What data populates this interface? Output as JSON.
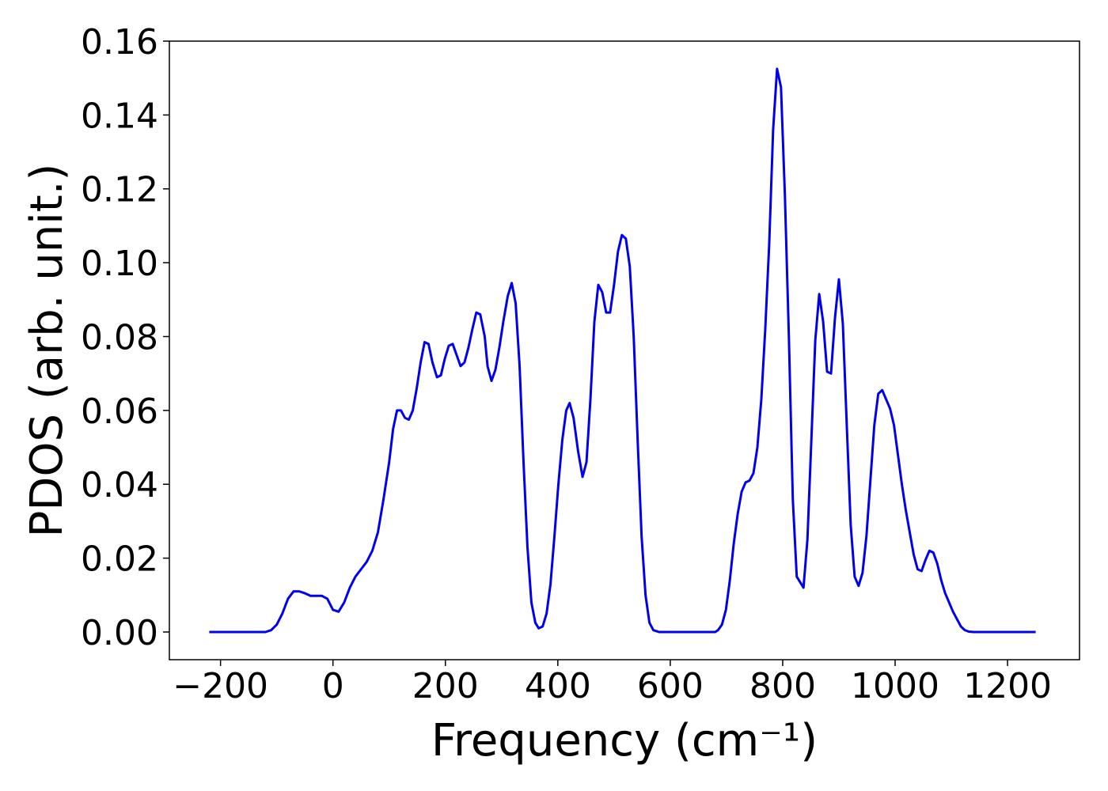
{
  "chart_data": {
    "type": "line",
    "xlabel": "Frequency (cm⁻¹)",
    "ylabel": "PDOS (arb. unit.)",
    "xlim": [
      -291,
      1328
    ],
    "ylim": [
      -0.0075,
      0.16
    ],
    "xticks": [
      {
        "value": -200,
        "label": "−200"
      },
      0,
      200,
      400,
      600,
      800,
      1000,
      1200
    ],
    "yticks": [
      {
        "value": 0,
        "label": "0.00"
      },
      {
        "value": 0.02,
        "label": "0.02"
      },
      {
        "value": 0.04,
        "label": "0.04"
      },
      {
        "value": 0.06,
        "label": "0.06"
      },
      {
        "value": 0.08,
        "label": "0.08"
      },
      {
        "value": 0.1,
        "label": "0.10"
      },
      {
        "value": 0.12,
        "label": "0.12"
      },
      {
        "value": 0.14,
        "label": "0.14"
      },
      {
        "value": 0.16,
        "label": "0.16"
      }
    ],
    "grid": false,
    "x": [
      -220,
      -120,
      -110,
      -100,
      -90,
      -80,
      -70,
      -60,
      -50,
      -40,
      -30,
      -20,
      -10,
      0,
      10,
      20,
      30,
      40,
      50,
      60,
      70,
      80,
      90,
      100,
      107,
      114,
      121,
      128,
      135,
      142,
      149,
      156,
      163,
      170,
      177,
      185,
      192,
      199,
      206,
      213,
      220,
      227,
      234,
      241,
      248,
      255,
      262,
      270,
      275,
      282,
      289,
      296,
      303,
      311,
      318,
      325,
      332,
      339,
      346,
      353,
      360,
      366,
      373,
      380,
      387,
      394,
      401,
      408,
      415,
      421,
      428,
      436,
      444,
      451,
      458,
      465,
      472,
      479,
      486,
      493,
      500,
      507,
      514,
      521,
      528,
      535,
      542,
      549,
      556,
      563,
      570,
      580,
      680,
      685,
      692,
      699,
      706,
      713,
      720,
      727,
      734,
      741,
      748,
      755,
      762,
      769,
      776,
      783,
      790,
      797,
      804,
      811,
      818,
      825,
      837,
      844,
      851,
      858,
      865,
      872,
      879,
      886,
      893,
      900,
      907,
      914,
      921,
      928,
      935,
      942,
      949,
      956,
      963,
      970,
      977,
      984,
      991,
      998,
      1005,
      1012,
      1019,
      1026,
      1033,
      1040,
      1047,
      1054,
      1061,
      1068,
      1075,
      1082,
      1089,
      1096,
      1103,
      1110,
      1117,
      1124,
      1131,
      1140,
      1250
    ],
    "series": [
      {
        "color": "#0000ee",
        "values": [
          0,
          0,
          0.0005,
          0.002,
          0.005,
          0.009,
          0.011,
          0.011,
          0.0105,
          0.0098,
          0.0098,
          0.0098,
          0.009,
          0.006,
          0.0055,
          0.008,
          0.012,
          0.015,
          0.017,
          0.019,
          0.022,
          0.027,
          0.036,
          0.046,
          0.055,
          0.06,
          0.06,
          0.058,
          0.0575,
          0.06,
          0.066,
          0.073,
          0.0785,
          0.078,
          0.073,
          0.069,
          0.0695,
          0.074,
          0.0775,
          0.078,
          0.075,
          0.072,
          0.073,
          0.077,
          0.082,
          0.0865,
          0.086,
          0.08,
          0.072,
          0.068,
          0.071,
          0.077,
          0.084,
          0.091,
          0.0945,
          0.089,
          0.072,
          0.046,
          0.023,
          0.008,
          0.0025,
          0.001,
          0.0015,
          0.005,
          0.013,
          0.026,
          0.04,
          0.052,
          0.06,
          0.062,
          0.058,
          0.049,
          0.042,
          0.046,
          0.063,
          0.084,
          0.094,
          0.092,
          0.0865,
          0.0865,
          0.094,
          0.103,
          0.1075,
          0.1065,
          0.099,
          0.08,
          0.052,
          0.026,
          0.01,
          0.0025,
          0.0005,
          0,
          0,
          0.0005,
          0.002,
          0.006,
          0.014,
          0.024,
          0.032,
          0.038,
          0.0405,
          0.041,
          0.043,
          0.05,
          0.063,
          0.082,
          0.105,
          0.136,
          0.1525,
          0.1475,
          0.118,
          0.08,
          0.036,
          0.015,
          0.012,
          0.025,
          0.052,
          0.079,
          0.0915,
          0.084,
          0.0705,
          0.07,
          0.085,
          0.0955,
          0.0835,
          0.056,
          0.029,
          0.015,
          0.0125,
          0.016,
          0.026,
          0.041,
          0.056,
          0.0645,
          0.0655,
          0.063,
          0.0605,
          0.056,
          0.048,
          0.04,
          0.033,
          0.027,
          0.021,
          0.017,
          0.0165,
          0.0195,
          0.022,
          0.0215,
          0.0185,
          0.014,
          0.0105,
          0.008,
          0.0055,
          0.0035,
          0.0015,
          0.0005,
          0.0001,
          0,
          0
        ]
      }
    ]
  }
}
